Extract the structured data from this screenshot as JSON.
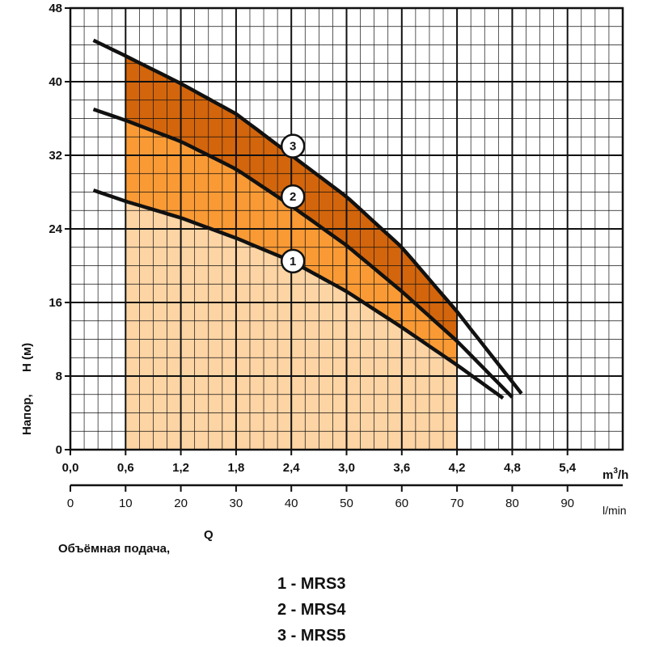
{
  "chart_data": {
    "type": "line",
    "ylabel_main": "Напор,",
    "ylabel_unit": "H (м)",
    "xlabel_main": "Объёмная подача,",
    "xlabel_q": "Q",
    "unit_m3h": "m",
    "unit_m3h_sup": "3",
    "unit_m3h_suffix": "/h",
    "unit_lmin": "l/min",
    "xlim": [
      0,
      6.0
    ],
    "ylim": [
      0,
      48
    ],
    "x_ticks": [
      "0,0",
      "0,6",
      "1,2",
      "1,8",
      "2,4",
      "3,0",
      "3,6",
      "4,2",
      "4,8",
      "5,4"
    ],
    "x_tick_values": [
      0,
      0.6,
      1.2,
      1.8,
      2.4,
      3.0,
      3.6,
      4.2,
      4.8,
      5.4
    ],
    "y_ticks": [
      "0",
      "8",
      "16",
      "24",
      "32",
      "40",
      "48"
    ],
    "y_tick_values": [
      0,
      8,
      16,
      24,
      32,
      40,
      48
    ],
    "x2_ticks": [
      "0",
      "10",
      "20",
      "30",
      "40",
      "50",
      "60",
      "70",
      "80",
      "90"
    ],
    "x2_tick_values": [
      0,
      10,
      20,
      30,
      40,
      50,
      60,
      70,
      80,
      90
    ],
    "grid": true,
    "operating_range": [
      0.6,
      4.2
    ],
    "colors": {
      "zone1": "#fdd4a4",
      "zone2": "#f99a35",
      "zone3": "#d3650c",
      "curve": "#111111"
    },
    "series": [
      {
        "name": "1",
        "x": [
          0.25,
          0.6,
          1.2,
          1.8,
          2.4,
          3.0,
          3.6,
          4.2,
          4.7
        ],
        "y": [
          28.2,
          27.0,
          25.2,
          23.0,
          20.5,
          17.2,
          13.3,
          9.2,
          5.6
        ]
      },
      {
        "name": "2",
        "x": [
          0.25,
          0.6,
          1.2,
          1.8,
          2.4,
          3.0,
          3.6,
          4.2,
          4.8
        ],
        "y": [
          37.0,
          35.8,
          33.5,
          30.5,
          26.5,
          22.2,
          17.2,
          11.8,
          5.7
        ]
      },
      {
        "name": "3",
        "x": [
          0.25,
          0.6,
          1.2,
          1.8,
          2.4,
          3.0,
          3.6,
          4.2,
          4.9
        ],
        "y": [
          44.5,
          42.8,
          39.8,
          36.5,
          32.0,
          27.5,
          22.0,
          15.0,
          6.1
        ]
      }
    ],
    "curve_labels": [
      {
        "text": "1",
        "x": 2.4,
        "y": 20.5
      },
      {
        "text": "2",
        "x": 2.4,
        "y": 27.5
      },
      {
        "text": "3",
        "x": 2.4,
        "y": 33.0
      }
    ],
    "legend": [
      "1 - MRS3",
      "2 - MRS4",
      "3 - MRS5"
    ]
  }
}
